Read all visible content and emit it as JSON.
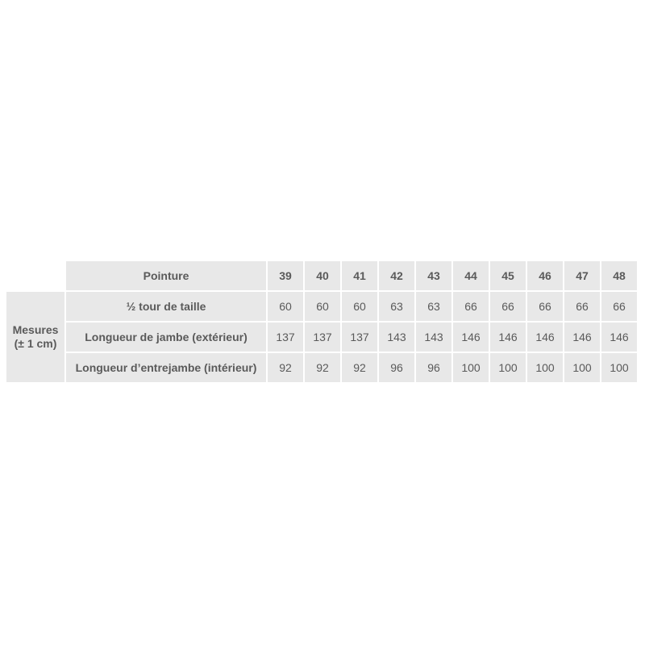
{
  "table": {
    "header_label": "Pointure",
    "group_label_line1": "Mesures",
    "group_label_line2": "(± 1 cm)",
    "sizes": [
      "39",
      "40",
      "41",
      "42",
      "43",
      "44",
      "45",
      "46",
      "47",
      "48"
    ],
    "rows": [
      {
        "label": "½ tour de taille",
        "values": [
          "60",
          "60",
          "60",
          "63",
          "63",
          "66",
          "66",
          "66",
          "66",
          "66"
        ]
      },
      {
        "label": "Longueur de jambe (extérieur)",
        "values": [
          "137",
          "137",
          "137",
          "143",
          "143",
          "146",
          "146",
          "146",
          "146",
          "146"
        ]
      },
      {
        "label": "Longueur d’entrejambe (intérieur)",
        "values": [
          "92",
          "92",
          "92",
          "96",
          "96",
          "100",
          "100",
          "100",
          "100",
          "100"
        ]
      }
    ]
  }
}
